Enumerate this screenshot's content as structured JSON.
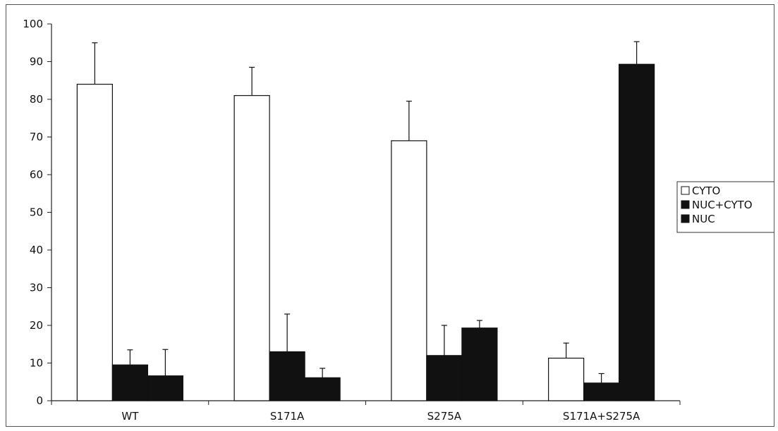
{
  "chart_data": {
    "type": "bar",
    "title": "",
    "xlabel": "",
    "ylabel": "",
    "categories": [
      "WT",
      "S171A",
      "S275A",
      "S171A+S275A"
    ],
    "ylim": [
      0,
      100
    ],
    "yticks": [
      0,
      10,
      20,
      30,
      40,
      50,
      60,
      70,
      80,
      90,
      100
    ],
    "grid": false,
    "legend_position": "right",
    "series": [
      {
        "name": "CYTO",
        "color": "#ffffff",
        "values": [
          84,
          81,
          69,
          11.3
        ],
        "errors": [
          11,
          7.5,
          10.5,
          4
        ]
      },
      {
        "name": "NUC+CYTO",
        "color": "#111111",
        "values": [
          9.5,
          13,
          12,
          4.7
        ],
        "errors": [
          4,
          10,
          8,
          2.5
        ]
      },
      {
        "name": "NUC",
        "color": "#111111",
        "values": [
          6.6,
          6.1,
          19.3,
          89.3
        ],
        "errors": [
          7,
          2.5,
          2,
          6
        ]
      }
    ]
  }
}
